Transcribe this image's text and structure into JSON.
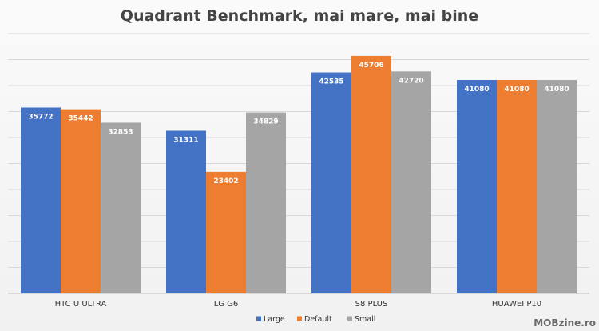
{
  "chart_data": {
    "type": "bar",
    "title": "Quadrant Benchmark, mai mare, mai bine",
    "categories": [
      "HTC U ULTRA",
      "LG G6",
      "S8 PLUS",
      "HUAWEI P10"
    ],
    "series": [
      {
        "name": "Large",
        "color": "#4472C4",
        "values": [
          35772,
          31311,
          42535,
          41080
        ]
      },
      {
        "name": "Default",
        "color": "#ED7D31",
        "values": [
          35442,
          23402,
          45706,
          41080
        ]
      },
      {
        "name": "Small",
        "color": "#A5A5A5",
        "values": [
          32853,
          34829,
          42720,
          41080
        ]
      }
    ],
    "ylim": [
      0,
      50000
    ],
    "grid": true,
    "legend_position": "bottom"
  },
  "watermark": "MOBzine.ro"
}
